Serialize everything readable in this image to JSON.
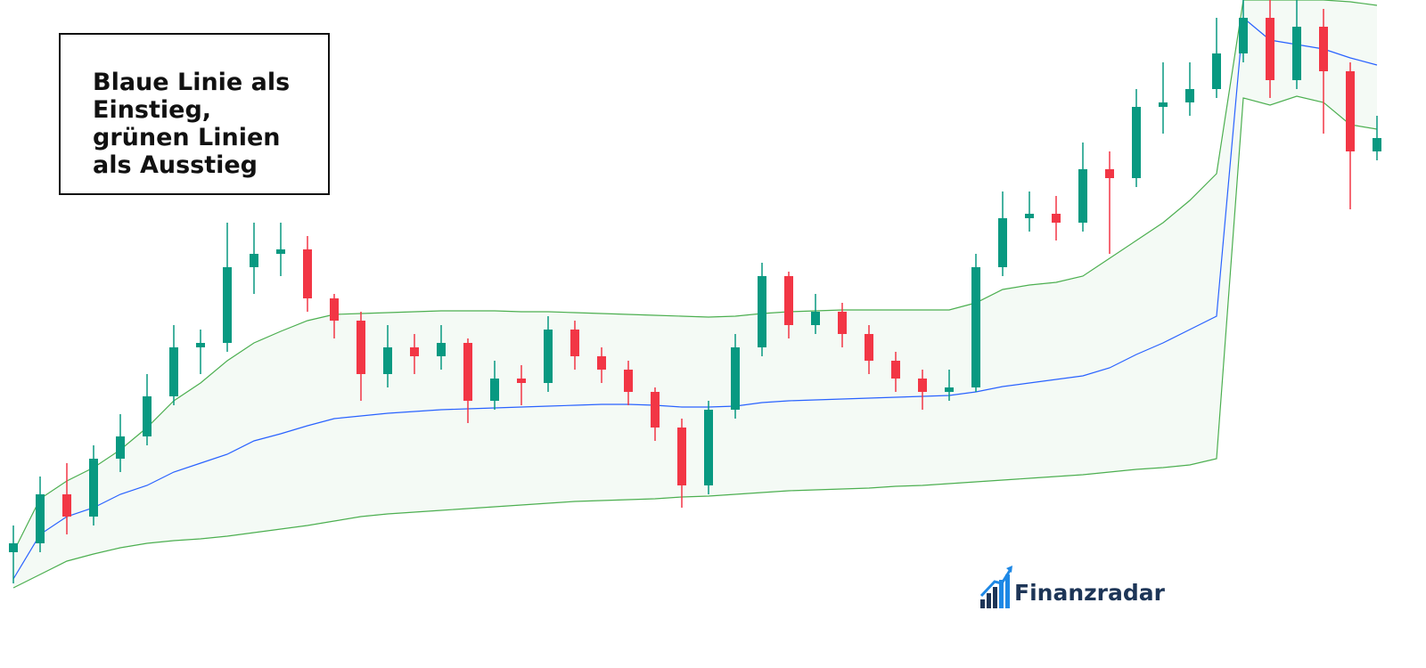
{
  "chart_data": {
    "type": "candlestick",
    "annotation": "Blaue Linie als Einstieg, grünen Linien als Ausstieg",
    "logo": "Finanzradar",
    "ylim": [
      0,
      750
    ],
    "up_color": "#089981",
    "down_color": "#f23645",
    "open": [
      130,
      140,
      195,
      170,
      235,
      260,
      305,
      360,
      365,
      450,
      465,
      470,
      415,
      390,
      330,
      360,
      350,
      365,
      300,
      325,
      320,
      380,
      350,
      335,
      310,
      270,
      205,
      290,
      360,
      440,
      385,
      400,
      375,
      345,
      325,
      310,
      315,
      450,
      505,
      510,
      500,
      560,
      550,
      630,
      635,
      650,
      690,
      730,
      660,
      720,
      670,
      580
    ],
    "high": [
      160,
      215,
      230,
      250,
      285,
      330,
      385,
      380,
      500,
      500,
      500,
      485,
      420,
      400,
      385,
      375,
      385,
      370,
      345,
      340,
      395,
      390,
      360,
      345,
      315,
      280,
      300,
      375,
      455,
      445,
      420,
      410,
      385,
      355,
      335,
      335,
      465,
      535,
      535,
      530,
      590,
      580,
      650,
      680,
      680,
      730,
      760,
      750,
      760,
      740,
      680,
      620
    ],
    "low": [
      95,
      130,
      150,
      160,
      220,
      250,
      295,
      330,
      355,
      420,
      440,
      400,
      370,
      300,
      315,
      330,
      335,
      275,
      290,
      295,
      310,
      335,
      320,
      295,
      255,
      180,
      195,
      280,
      350,
      370,
      375,
      360,
      330,
      310,
      290,
      300,
      310,
      440,
      490,
      480,
      490,
      465,
      540,
      600,
      620,
      640,
      680,
      640,
      650,
      600,
      515,
      570
    ],
    "close": [
      140,
      195,
      170,
      235,
      260,
      305,
      360,
      365,
      450,
      465,
      470,
      415,
      390,
      330,
      360,
      350,
      365,
      300,
      325,
      320,
      380,
      350,
      335,
      310,
      270,
      205,
      290,
      360,
      440,
      385,
      400,
      375,
      345,
      325,
      310,
      315,
      450,
      505,
      510,
      500,
      560,
      550,
      630,
      635,
      650,
      690,
      730,
      660,
      720,
      670,
      580,
      595
    ],
    "series": [
      {
        "color": "#2962ff",
        "values": [
          100,
          150,
          170,
          180,
          195,
          205,
          220,
          230,
          240,
          255,
          263,
          272,
          280,
          283,
          286,
          288,
          290,
          291,
          292,
          293,
          294,
          295,
          296,
          296,
          295,
          293,
          293,
          294,
          298,
          300,
          301,
          302,
          303,
          304,
          305,
          306,
          310,
          316,
          320,
          324,
          328,
          337,
          352,
          365,
          380,
          395,
          730,
          705,
          700,
          695,
          685,
          677
        ]
      },
      {
        "color": "#4caf50",
        "values": [
          130,
          190,
          210,
          225,
          245,
          270,
          300,
          320,
          345,
          365,
          378,
          390,
          397,
          398,
          399,
          400,
          401,
          401,
          401,
          400,
          400,
          399,
          398,
          397,
          396,
          395,
          394,
          395,
          398,
          400,
          401,
          402,
          402,
          402,
          402,
          402,
          410,
          425,
          430,
          433,
          440,
          460,
          480,
          500,
          525,
          555,
          750,
          750,
          750,
          750,
          748,
          744
        ]
      },
      {
        "color": "#4caf50",
        "values": [
          90,
          105,
          120,
          128,
          135,
          140,
          143,
          145,
          148,
          152,
          156,
          160,
          165,
          170,
          173,
          175,
          177,
          179,
          181,
          183,
          185,
          187,
          188,
          189,
          190,
          192,
          193,
          195,
          197,
          199,
          200,
          201,
          202,
          204,
          205,
          207,
          209,
          211,
          213,
          215,
          217,
          220,
          223,
          225,
          228,
          235,
          640,
          632,
          642,
          635,
          610,
          605
        ]
      }
    ]
  }
}
